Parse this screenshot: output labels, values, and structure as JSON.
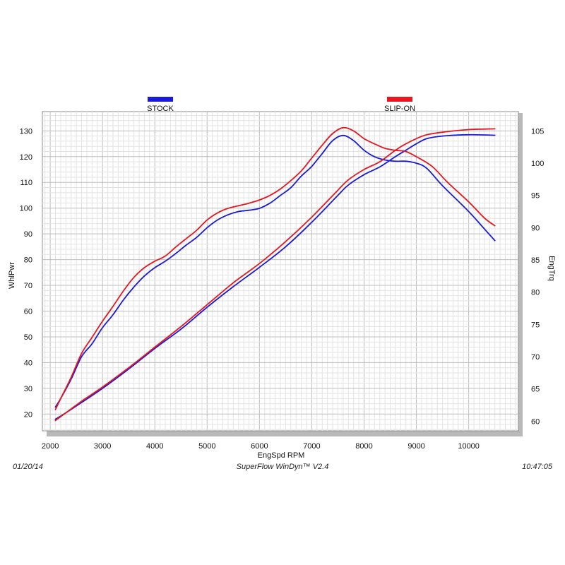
{
  "chart_data": {
    "type": "line",
    "xlabel": "EngSpd  RPM",
    "ylabel_left": "WhlPwr",
    "ylabel_right": "EngTrq",
    "xlim": [
      1850,
      10950
    ],
    "ylim_left": [
      13.5,
      137.5
    ],
    "ylim_right": [
      58.5,
      108
    ],
    "x_ticks": [
      2000,
      3000,
      4000,
      5000,
      6000,
      7000,
      8000,
      9000,
      10000
    ],
    "y_left_ticks": [
      20,
      30,
      40,
      50,
      60,
      70,
      80,
      90,
      100,
      110,
      120,
      130
    ],
    "y_right_ticks": [
      60,
      65,
      70,
      75,
      80,
      85,
      90,
      95,
      100,
      105
    ],
    "grid": true,
    "legend": [
      "STOCK",
      "SLIP-ON"
    ],
    "colors": {
      "STOCK": "#1a1adb",
      "SLIP-ON": "#e8161f"
    },
    "series": [
      {
        "name": "STOCK",
        "measure": "WhlPwr",
        "axis": "left",
        "points": [
          [
            2100,
            18
          ],
          [
            2300,
            20.5
          ],
          [
            2600,
            24.5
          ],
          [
            3000,
            30
          ],
          [
            3500,
            37.5
          ],
          [
            4000,
            45.5
          ],
          [
            4500,
            53
          ],
          [
            5000,
            61.5
          ],
          [
            5500,
            69.5
          ],
          [
            6000,
            77
          ],
          [
            6500,
            85
          ],
          [
            7000,
            94.5
          ],
          [
            7500,
            105
          ],
          [
            7700,
            109
          ],
          [
            8000,
            113
          ],
          [
            8300,
            116
          ],
          [
            8600,
            120
          ],
          [
            8800,
            122.5
          ],
          [
            9000,
            125
          ],
          [
            9200,
            127
          ],
          [
            9500,
            128
          ],
          [
            10000,
            128.5
          ],
          [
            10500,
            128.3
          ]
        ]
      },
      {
        "name": "SLIP-ON",
        "measure": "WhlPwr",
        "axis": "left",
        "points": [
          [
            2100,
            17.5
          ],
          [
            2300,
            20.5
          ],
          [
            2600,
            25
          ],
          [
            3000,
            30.5
          ],
          [
            3500,
            38
          ],
          [
            4000,
            46
          ],
          [
            4500,
            54
          ],
          [
            5000,
            62.5
          ],
          [
            5500,
            71
          ],
          [
            6000,
            78.5
          ],
          [
            6500,
            87
          ],
          [
            7000,
            96.5
          ],
          [
            7500,
            107
          ],
          [
            7700,
            111
          ],
          [
            8000,
            115
          ],
          [
            8300,
            118
          ],
          [
            8600,
            122.5
          ],
          [
            8800,
            125
          ],
          [
            9000,
            127
          ],
          [
            9200,
            128.5
          ],
          [
            9500,
            129.5
          ],
          [
            10000,
            130.5
          ],
          [
            10500,
            130.8
          ]
        ]
      },
      {
        "name": "STOCK",
        "measure": "EngTrq",
        "axis": "right",
        "points": [
          [
            2100,
            62.2
          ],
          [
            2200,
            63.5
          ],
          [
            2400,
            66.5
          ],
          [
            2600,
            70
          ],
          [
            2800,
            72
          ],
          [
            3000,
            74.5
          ],
          [
            3200,
            76.5
          ],
          [
            3400,
            78.8
          ],
          [
            3600,
            80.8
          ],
          [
            3800,
            82.5
          ],
          [
            4000,
            83.8
          ],
          [
            4200,
            84.8
          ],
          [
            4400,
            86
          ],
          [
            4600,
            87.3
          ],
          [
            4800,
            88.5
          ],
          [
            5000,
            90
          ],
          [
            5200,
            91.2
          ],
          [
            5400,
            92
          ],
          [
            5600,
            92.5
          ],
          [
            5800,
            92.7
          ],
          [
            6000,
            93
          ],
          [
            6200,
            93.8
          ],
          [
            6400,
            95
          ],
          [
            6600,
            96.2
          ],
          [
            6800,
            98
          ],
          [
            7000,
            99.5
          ],
          [
            7200,
            101.5
          ],
          [
            7400,
            103.5
          ],
          [
            7600,
            104.3
          ],
          [
            7800,
            103.5
          ],
          [
            8000,
            102
          ],
          [
            8200,
            101
          ],
          [
            8400,
            100.5
          ],
          [
            8600,
            100.3
          ],
          [
            8800,
            100.3
          ],
          [
            9000,
            100
          ],
          [
            9200,
            99.2
          ],
          [
            9500,
            96.5
          ],
          [
            10000,
            92.5
          ],
          [
            10300,
            89.8
          ],
          [
            10500,
            88
          ]
        ]
      },
      {
        "name": "SLIP-ON",
        "measure": "EngTrq",
        "axis": "right",
        "points": [
          [
            2100,
            61.8
          ],
          [
            2200,
            63.5
          ],
          [
            2400,
            66.8
          ],
          [
            2600,
            70.5
          ],
          [
            2800,
            73
          ],
          [
            3000,
            75.5
          ],
          [
            3200,
            77.8
          ],
          [
            3400,
            80.2
          ],
          [
            3600,
            82.3
          ],
          [
            3800,
            83.8
          ],
          [
            4000,
            84.8
          ],
          [
            4200,
            85.6
          ],
          [
            4400,
            87
          ],
          [
            4600,
            88.3
          ],
          [
            4800,
            89.6
          ],
          [
            5000,
            91.2
          ],
          [
            5200,
            92.3
          ],
          [
            5400,
            93
          ],
          [
            5600,
            93.4
          ],
          [
            5800,
            93.8
          ],
          [
            6000,
            94.3
          ],
          [
            6200,
            95
          ],
          [
            6400,
            96
          ],
          [
            6600,
            97.3
          ],
          [
            6800,
            98.8
          ],
          [
            7000,
            100.8
          ],
          [
            7200,
            102.8
          ],
          [
            7400,
            104.6
          ],
          [
            7600,
            105.5
          ],
          [
            7800,
            105
          ],
          [
            8000,
            103.8
          ],
          [
            8200,
            103
          ],
          [
            8400,
            102.3
          ],
          [
            8600,
            102
          ],
          [
            8800,
            101.8
          ],
          [
            9000,
            101
          ],
          [
            9300,
            99.5
          ],
          [
            9600,
            97
          ],
          [
            10000,
            94
          ],
          [
            10300,
            91.5
          ],
          [
            10500,
            90.3
          ]
        ]
      }
    ]
  },
  "footer": {
    "date": "01/20/14",
    "software": "SuperFlow WinDyn™ V2.4",
    "time": "10:47:05"
  }
}
